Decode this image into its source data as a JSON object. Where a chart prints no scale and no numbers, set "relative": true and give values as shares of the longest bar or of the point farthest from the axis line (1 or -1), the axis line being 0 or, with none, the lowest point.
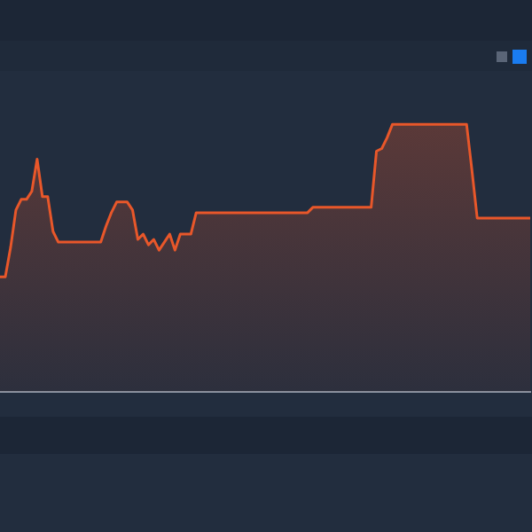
{
  "chart_data": {
    "type": "area",
    "relative": true,
    "color": "#e8572a",
    "categories": [
      null,
      null,
      null,
      null,
      null,
      null,
      null,
      null,
      null,
      null,
      null,
      null,
      null,
      null,
      null,
      null,
      null,
      null,
      null,
      null,
      null,
      null,
      null,
      null,
      null,
      null,
      null,
      null,
      null,
      null,
      null,
      null,
      null,
      null,
      null,
      null,
      null,
      null,
      null,
      null,
      null,
      null,
      null,
      null,
      null,
      null,
      null,
      null,
      null,
      null,
      null,
      null,
      null,
      null,
      null,
      null,
      null,
      null,
      null,
      null,
      null,
      null,
      null,
      null,
      null,
      null,
      null,
      null,
      null,
      null,
      null,
      null,
      null,
      null,
      null,
      null,
      null,
      null,
      null,
      null,
      null,
      null,
      null,
      null,
      null,
      null,
      null,
      null,
      null,
      null,
      null,
      null,
      null,
      null,
      null,
      null,
      null,
      null,
      null,
      null,
      null
    ],
    "values": [
      0.43,
      0.43,
      0.54,
      0.68,
      0.72,
      0.72,
      0.75,
      0.87,
      0.73,
      0.73,
      0.6,
      0.56,
      0.56,
      0.56,
      0.56,
      0.56,
      0.56,
      0.56,
      0.56,
      0.56,
      0.62,
      0.67,
      0.71,
      0.71,
      0.71,
      0.68,
      0.57,
      0.59,
      0.55,
      0.57,
      0.53,
      0.56,
      0.59,
      0.53,
      0.59,
      0.59,
      0.59,
      0.67,
      0.67,
      0.67,
      0.67,
      0.67,
      0.67,
      0.67,
      0.67,
      0.67,
      0.67,
      0.67,
      0.67,
      0.67,
      0.67,
      0.67,
      0.67,
      0.67,
      0.67,
      0.67,
      0.67,
      0.67,
      0.67,
      0.69,
      0.69,
      0.69,
      0.69,
      0.69,
      0.69,
      0.69,
      0.69,
      0.69,
      0.69,
      0.69,
      0.69,
      0.9,
      0.91,
      0.95,
      1,
      1,
      1,
      1,
      1,
      1,
      1,
      1,
      1,
      1,
      1,
      1,
      1,
      1,
      1,
      0.83,
      0.65,
      0.65,
      0.65,
      0.65,
      0.65,
      0.65,
      0.65,
      0.65,
      0.65,
      0.65,
      0.65
    ],
    "grid": false,
    "legend": false
  }
}
